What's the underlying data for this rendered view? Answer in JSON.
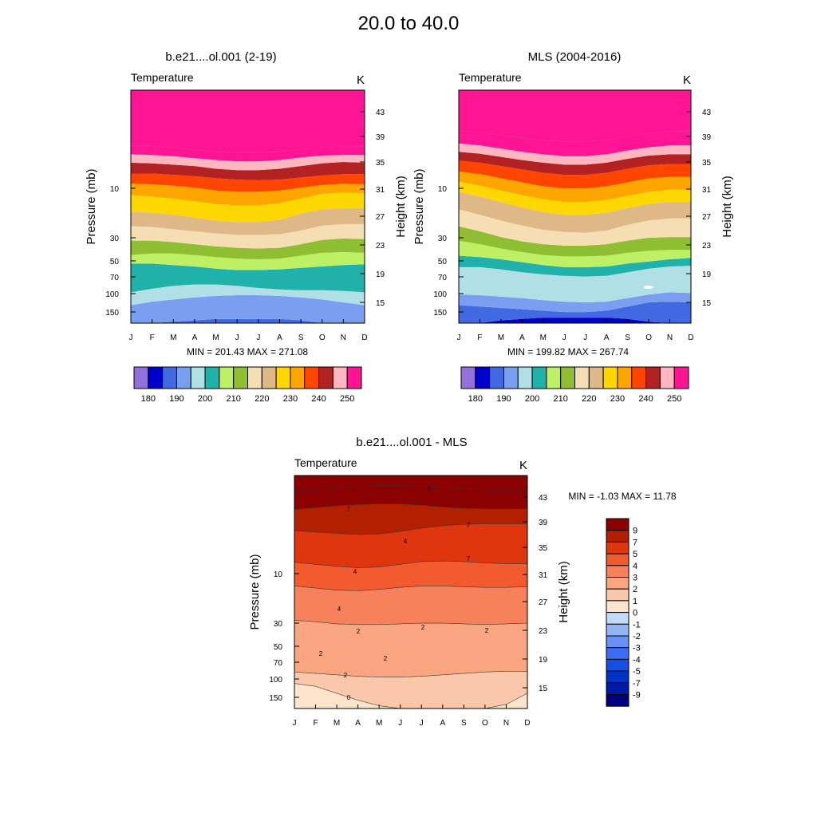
{
  "page_title": "20.0 to  40.0",
  "colors": {
    "abs_scale": [
      "#9370db",
      "#0000cd",
      "#4169e1",
      "#7b9ff0",
      "#b0e0e6",
      "#20b2aa",
      "#bdf065",
      "#90be32",
      "#f5deb3",
      "#deb887",
      "#ffd700",
      "#ffa500",
      "#ff4500",
      "#b22222",
      "#ffb6c1",
      "#ff1493"
    ],
    "diff_scale": [
      "#000080",
      "#0019a8",
      "#0032c8",
      "#144ee6",
      "#3b6ef5",
      "#6891f5",
      "#93b4f7",
      "#c2d9f7",
      "#fde4cc",
      "#fbc7aa",
      "#f9a680",
      "#f6815a",
      "#f25a2f",
      "#e03610",
      "#b32000",
      "#8b0000"
    ]
  },
  "chart_data": [
    {
      "type": "heatmap",
      "title": "b.e21....ol.001 (2-19)",
      "left_label": "Temperature",
      "right_label": "K",
      "ylabel": "Pressure (mb)",
      "ylabel_right": "Height (km)",
      "x_ticks": [
        "J",
        "F",
        "M",
        "A",
        "M",
        "J",
        "J",
        "A",
        "S",
        "O",
        "N",
        "D"
      ],
      "y_ticks": [
        "10",
        "30",
        "50",
        "70",
        "100",
        "150"
      ],
      "y_ticks_right": [
        "43",
        "39",
        "35",
        "31",
        "27",
        "23",
        "19",
        "15"
      ],
      "stats": "MIN = 201.43  MAX = 271.08",
      "contour_levels": [
        175,
        180,
        185,
        190,
        195,
        200,
        205,
        210,
        215,
        220,
        225,
        230,
        235,
        240,
        245,
        250,
        255
      ],
      "colorbar_labels": [
        "180",
        "190",
        "200",
        "210",
        "220",
        "230",
        "240",
        "250"
      ],
      "boundaries_height_km": [
        [
          13.2,
          13.4,
          13.6,
          13.7,
          13.8,
          13.8,
          13.8,
          13.8,
          13.7,
          13.5,
          13.3,
          13.2
        ],
        [
          14.8,
          15.1,
          15.4,
          15.7,
          15.9,
          16.0,
          16.0,
          15.9,
          15.7,
          15.4,
          15.0,
          14.8
        ],
        [
          16.4,
          16.9,
          17.3,
          17.5,
          17.5,
          17.3,
          17.0,
          16.8,
          16.7,
          16.7,
          16.6,
          16.4
        ],
        [
          20.4,
          20.4,
          20.2,
          20.0,
          19.7,
          19.5,
          19.5,
          19.6,
          19.8,
          20.0,
          20.2,
          20.3
        ],
        [
          21.6,
          21.8,
          21.8,
          21.6,
          21.3,
          21.1,
          21.0,
          21.1,
          21.5,
          21.9,
          22.0,
          21.9
        ],
        [
          23.6,
          23.6,
          23.4,
          23.1,
          22.8,
          22.6,
          22.5,
          22.6,
          23.1,
          23.7,
          23.9,
          23.8
        ],
        [
          25.6,
          25.5,
          25.2,
          24.9,
          24.6,
          24.4,
          24.4,
          24.5,
          25.0,
          25.7,
          25.9,
          25.9
        ],
        [
          27.7,
          27.5,
          27.2,
          26.8,
          26.4,
          26.2,
          26.2,
          26.5,
          27.4,
          28.0,
          28.2,
          28.2
        ],
        [
          30.1,
          29.9,
          29.6,
          29.2,
          28.8,
          28.6,
          28.6,
          28.9,
          29.6,
          30.3,
          30.5,
          30.4
        ],
        [
          31.8,
          31.7,
          31.5,
          31.2,
          30.8,
          30.6,
          30.6,
          30.8,
          31.2,
          31.6,
          31.8,
          31.7
        ],
        [
          33.3,
          33.3,
          33.1,
          32.9,
          32.6,
          32.4,
          32.3,
          32.4,
          32.7,
          33.0,
          33.2,
          33.2
        ],
        [
          34.9,
          34.8,
          34.6,
          34.4,
          34.0,
          33.8,
          33.8,
          34.0,
          34.4,
          34.8,
          35.0,
          34.9
        ],
        [
          36.2,
          36.1,
          35.9,
          35.6,
          35.3,
          35.1,
          35.1,
          35.3,
          35.7,
          36.0,
          36.1,
          36.1
        ],
        [
          37.6,
          37.5,
          37.2,
          36.9,
          36.6,
          36.4,
          36.4,
          36.6,
          37.0,
          37.3,
          37.4,
          37.4
        ]
      ]
    },
    {
      "type": "heatmap",
      "title": "MLS (2004-2016)",
      "left_label": "Temperature",
      "right_label": "K",
      "ylabel": "Pressure (mb)",
      "ylabel_right": "Height (km)",
      "x_ticks": [
        "J",
        "F",
        "M",
        "A",
        "M",
        "J",
        "J",
        "A",
        "S",
        "O",
        "N",
        "D"
      ],
      "y_ticks": [
        "10",
        "30",
        "50",
        "70",
        "100",
        "150"
      ],
      "y_ticks_right": [
        "43",
        "39",
        "35",
        "31",
        "27",
        "23",
        "19",
        "15"
      ],
      "stats": "MIN = 199.82  MAX = 267.74",
      "contour_levels": [
        175,
        180,
        185,
        190,
        195,
        200,
        205,
        210,
        215,
        220,
        225,
        230,
        235,
        240,
        245,
        250,
        255
      ],
      "colorbar_labels": [
        "180",
        "190",
        "200",
        "210",
        "220",
        "230",
        "240",
        "250"
      ],
      "boundaries_height_km": [
        [
          13.3,
          13.5,
          13.7,
          13.8,
          13.9,
          13.9,
          13.9,
          13.9,
          13.8,
          13.6,
          13.4,
          13.3
        ],
        [
          14.8,
          14.7,
          14.6,
          14.5,
          14.4,
          14.3,
          14.3,
          14.4,
          14.7,
          15.0,
          15.1,
          15.0
        ],
        [
          16.1,
          16.0,
          15.8,
          15.6,
          15.3,
          15.1,
          15.0,
          15.1,
          15.6,
          16.1,
          16.4,
          16.3
        ],
        [
          19.9,
          19.9,
          19.6,
          19.2,
          18.9,
          18.7,
          18.6,
          18.7,
          19.2,
          19.7,
          20.0,
          20.1
        ],
        [
          21.5,
          21.3,
          21.0,
          20.6,
          20.2,
          19.9,
          19.9,
          20.0,
          20.4,
          20.7,
          21.0,
          21.2
        ],
        [
          23.6,
          23.1,
          22.5,
          22.0,
          21.6,
          21.4,
          21.4,
          21.5,
          21.9,
          22.2,
          22.3,
          22.3
        ],
        [
          25.6,
          24.9,
          24.1,
          23.5,
          23.1,
          22.9,
          22.9,
          23.1,
          23.6,
          24.0,
          24.1,
          24.1
        ],
        [
          28.0,
          27.2,
          26.4,
          25.7,
          25.1,
          24.8,
          24.7,
          25.0,
          25.8,
          26.4,
          26.7,
          26.7
        ],
        [
          30.6,
          29.9,
          29.1,
          28.3,
          27.6,
          27.2,
          27.2,
          27.5,
          28.2,
          28.8,
          29.1,
          29.1
        ],
        [
          32.1,
          31.5,
          30.8,
          30.1,
          29.5,
          29.1,
          29.1,
          29.4,
          30.0,
          30.6,
          30.9,
          30.9
        ],
        [
          33.6,
          33.2,
          32.6,
          32.0,
          31.4,
          31.1,
          31.1,
          31.4,
          32.0,
          32.6,
          32.8,
          32.8
        ],
        [
          35.2,
          34.9,
          34.4,
          33.9,
          33.4,
          33.1,
          33.1,
          33.4,
          34.0,
          34.5,
          34.7,
          34.7
        ],
        [
          36.6,
          36.3,
          35.8,
          35.3,
          34.9,
          34.6,
          34.6,
          34.9,
          35.5,
          36.0,
          36.2,
          36.2
        ],
        [
          37.9,
          37.6,
          37.1,
          36.6,
          36.2,
          35.9,
          35.9,
          36.2,
          36.8,
          37.3,
          37.6,
          37.6
        ],
        [
          39.9,
          39.7,
          39.2,
          38.8,
          38.4,
          38.2,
          38.2,
          38.5,
          39.0,
          39.5,
          39.8,
          39.8
        ]
      ]
    },
    {
      "type": "heatmap",
      "title": "b.e21....ol.001 - MLS",
      "left_label": "Temperature",
      "right_label": "K",
      "ylabel": "Pressure (mb)",
      "ylabel_right": "Height (km)",
      "x_ticks": [
        "J",
        "F",
        "M",
        "A",
        "M",
        "J",
        "J",
        "A",
        "S",
        "O",
        "N",
        "D"
      ],
      "y_ticks": [
        "10",
        "30",
        "50",
        "70",
        "100",
        "150"
      ],
      "y_ticks_right": [
        "43",
        "39",
        "35",
        "31",
        "27",
        "23",
        "19",
        "15"
      ],
      "stats": "MIN =  -1.03  MAX =  11.78",
      "contour_levels": [
        -10,
        -9,
        -7,
        -5,
        -4,
        -3,
        -2,
        -1,
        0,
        1,
        2,
        3,
        4,
        5,
        7,
        9,
        10
      ],
      "colorbar_labels": [
        "-9",
        "-7",
        "-5",
        "-4",
        "-3",
        "-2",
        "-1",
        "0",
        "1",
        "2",
        "3",
        "4",
        "5",
        "7",
        "9"
      ],
      "contour_labels": [
        "0",
        "2",
        "2",
        "2",
        "2",
        "2",
        "2",
        "4",
        "4",
        "4",
        "7",
        "7",
        "7",
        "1"
      ],
      "boundaries_height_km": [
        [
          13.5,
          13.5,
          13.5,
          13.5,
          13.5,
          13.5,
          13.5,
          13.5,
          13.5,
          13.5,
          13.5,
          13.5
        ],
        [
          13.5,
          13.5,
          13.5,
          13.5,
          13.5,
          13.5,
          13.5,
          13.5,
          13.5,
          13.5,
          13.5,
          13.5
        ],
        [
          13.5,
          13.5,
          13.5,
          13.5,
          13.5,
          13.5,
          13.5,
          13.5,
          13.5,
          13.5,
          13.5,
          13.5
        ],
        [
          13.5,
          13.5,
          13.5,
          13.5,
          13.5,
          13.5,
          13.5,
          13.5,
          13.5,
          13.5,
          13.5,
          13.5
        ],
        [
          13.5,
          13.5,
          13.5,
          13.5,
          13.5,
          13.5,
          13.5,
          13.5,
          13.5,
          13.5,
          13.5,
          13.5
        ],
        [
          13.5,
          13.5,
          13.5,
          13.5,
          13.5,
          13.5,
          13.5,
          13.5,
          13.5,
          13.5,
          13.5,
          13.5
        ],
        [
          13.5,
          13.5,
          13.5,
          13.5,
          13.5,
          13.5,
          13.5,
          13.5,
          13.5,
          13.5,
          13.5,
          13.5
        ],
        [
          13.5,
          13.5,
          13.5,
          13.5,
          13.5,
          13.5,
          13.5,
          13.5,
          13.5,
          13.5,
          13.5,
          13.5
        ],
        [
          15.6,
          15.2,
          14.6,
          14.1,
          13.7,
          13.5,
          13.5,
          13.5,
          13.5,
          13.5,
          13.8,
          14.6
        ],
        [
          17.2,
          17.0,
          16.8,
          16.6,
          16.5,
          16.5,
          16.6,
          16.8,
          17.0,
          17.2,
          17.3,
          17.3
        ],
        [
          24.4,
          24.2,
          23.9,
          23.8,
          23.8,
          23.9,
          24.0,
          24.0,
          23.9,
          23.8,
          23.9,
          24.0
        ],
        [
          29.3,
          29.0,
          28.7,
          28.6,
          28.8,
          29.1,
          29.3,
          29.3,
          29.2,
          29.1,
          29.1,
          29.2
        ],
        [
          32.8,
          32.5,
          32.2,
          32.0,
          32.1,
          32.5,
          32.9,
          33.0,
          32.9,
          32.7,
          32.6,
          32.6
        ],
        [
          37.6,
          37.4,
          37.2,
          37.0,
          37.1,
          37.5,
          38.0,
          38.4,
          38.6,
          38.7,
          38.7,
          38.7
        ],
        [
          41.0,
          41.3,
          41.6,
          41.8,
          41.9,
          41.9,
          41.7,
          41.4,
          41.2,
          41.1,
          41.1,
          41.1
        ],
        [
          44.0,
          44.0,
          44.2,
          44.5,
          44.6,
          44.6,
          44.5,
          44.3,
          44.1,
          44.0,
          44.0,
          44.0
        ]
      ]
    }
  ]
}
